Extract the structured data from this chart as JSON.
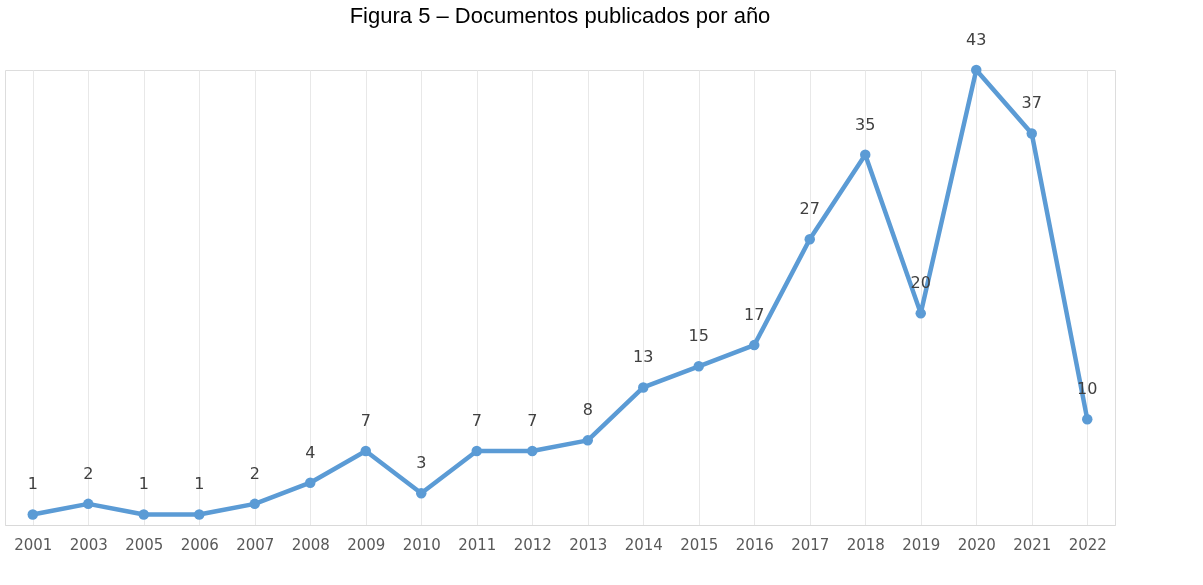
{
  "chart_data": {
    "type": "line",
    "title": "Figura 5 – Documentos publicados por año",
    "categories": [
      "2001",
      "2003",
      "2005",
      "2006",
      "2007",
      "2008",
      "2009",
      "2010",
      "2011",
      "2012",
      "2013",
      "2014",
      "2015",
      "2016",
      "2017",
      "2018",
      "2019",
      "2020",
      "2021",
      "2022"
    ],
    "series": [
      {
        "color": "#5b9bd5",
        "values": [
          1,
          2,
          1,
          1,
          2,
          4,
          7,
          3,
          7,
          7,
          8,
          13,
          15,
          17,
          27,
          35,
          20,
          43,
          37,
          10
        ]
      }
    ],
    "data_labels": true,
    "grid": "x",
    "marker": "circle",
    "line_style": "solid"
  }
}
